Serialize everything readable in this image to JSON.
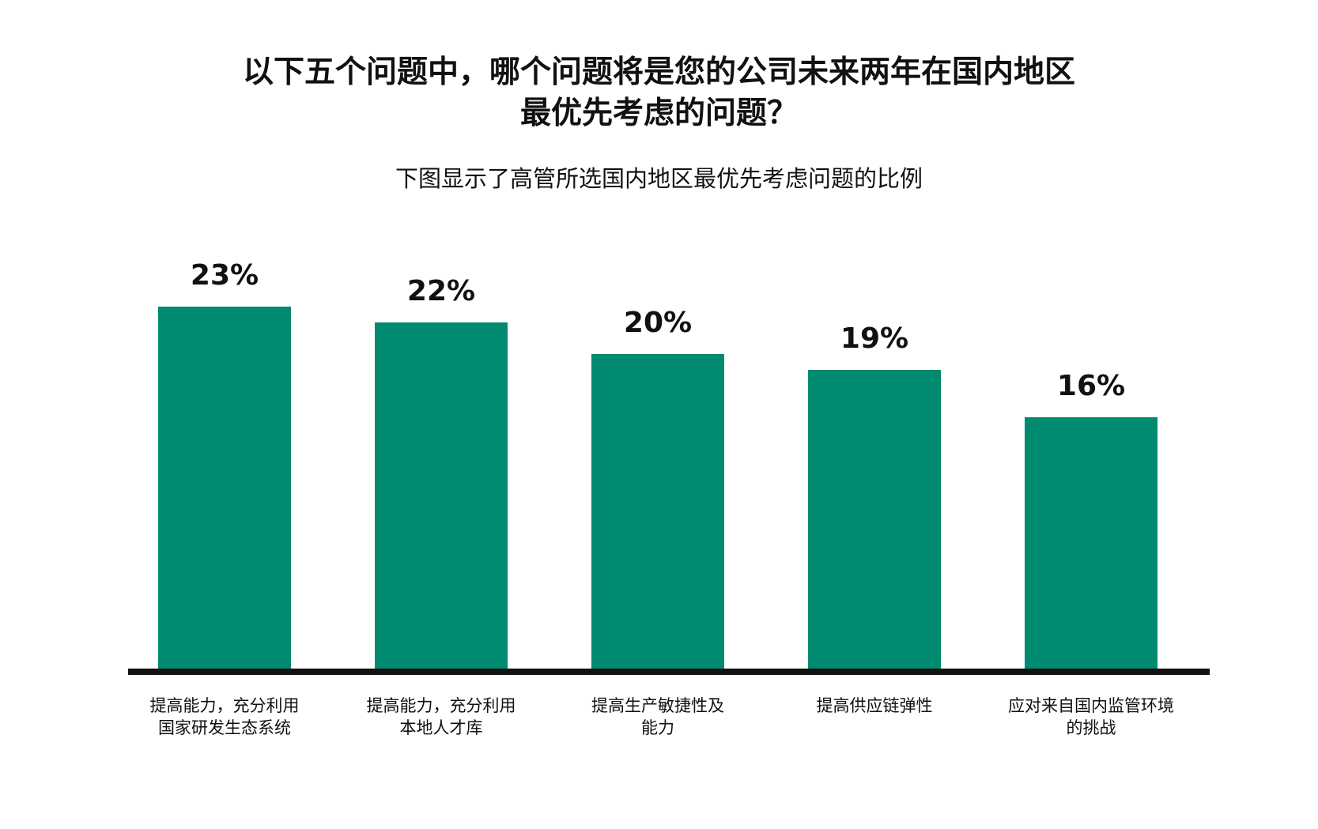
{
  "title_lines": [
    "以下五个问题中，哪个问题将是您的公司未来两年在国内地区",
    "最优先考虑的问题？"
  ],
  "subtitle": "下图显示了高管所选国内地区最优先考虑问题的比例",
  "colors": {
    "bar": "#008a6f",
    "axis": "#111111",
    "text": "#111111"
  },
  "chart_data": {
    "type": "bar",
    "title": "以下五个问题中，哪个问题将是您的公司未来两年在国内地区最优先考虑的问题？",
    "subtitle": "下图显示了高管所选国内地区最优先考虑问题的比例",
    "categories": [
      [
        "提高能力，充分利用",
        "国家研发生态系统"
      ],
      [
        "提高能力，充分利用",
        "本地人才库"
      ],
      [
        "提高生产敏捷性及",
        "能力"
      ],
      [
        "提高供应链弹性"
      ],
      [
        "应对来自国内监管环境",
        "的挑战"
      ]
    ],
    "values": [
      23,
      22,
      20,
      19,
      16
    ],
    "value_labels": [
      "23%",
      "22%",
      "20%",
      "19%",
      "16%"
    ],
    "unit": "%",
    "ylim": [
      0,
      25
    ],
    "grid": false,
    "legend": "none"
  }
}
